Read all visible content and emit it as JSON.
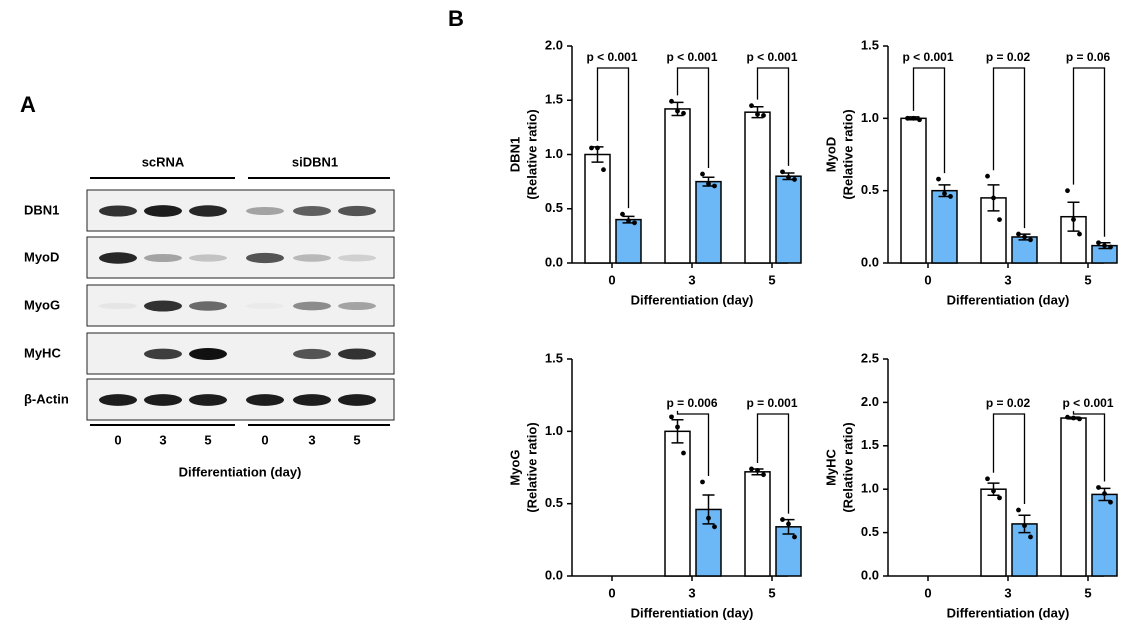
{
  "panel_a": {
    "label": "A",
    "groups": [
      "scRNA",
      "siDBN1"
    ],
    "rows": [
      "DBN1",
      "MyoD",
      "MyoG",
      "MyHC",
      "β-Actin"
    ],
    "lanes": [
      "0",
      "3",
      "5",
      "0",
      "3",
      "5"
    ],
    "xlabel": "Differentiation (day)"
  },
  "panel_b": {
    "label": "B"
  },
  "chart_data": [
    {
      "type": "bar",
      "ylabel": [
        "DBN1",
        "(Relative ratio)"
      ],
      "xlabel": "Differentiation (day)",
      "categories": [
        "0",
        "3",
        "5"
      ],
      "ylim": [
        0,
        2
      ],
      "yticks": [
        {
          "value": 0,
          "label": "0.0"
        },
        {
          "value": 0.5,
          "label": "0.5"
        },
        {
          "value": 1,
          "label": "1.0"
        },
        {
          "value": 1.5,
          "label": "1.5"
        },
        {
          "value": 2,
          "label": "2.0"
        }
      ],
      "series": [
        {
          "color": "#ffffff",
          "values": [
            1.0,
            1.42,
            1.39
          ],
          "errors": [
            0.07,
            0.06,
            0.05
          ],
          "points": [
            [
              1.06,
              1.06,
              0.86
            ],
            [
              1.49,
              1.4,
              1.38
            ],
            [
              1.45,
              1.37,
              1.36
            ]
          ]
        },
        {
          "color": "#6cb7f5",
          "values": [
            0.4,
            0.75,
            0.8
          ],
          "errors": [
            0.03,
            0.04,
            0.03
          ],
          "points": [
            [
              0.45,
              0.39,
              0.37
            ],
            [
              0.82,
              0.73,
              0.71
            ],
            [
              0.84,
              0.79,
              0.77
            ]
          ]
        }
      ],
      "annotations": [
        "p < 0.001",
        "p < 0.001",
        "p < 0.001"
      ]
    },
    {
      "type": "bar",
      "ylabel": [
        "MyoD",
        "(Relative ratio)"
      ],
      "xlabel": "Differentiation (day)",
      "categories": [
        "0",
        "3",
        "5"
      ],
      "ylim": [
        0,
        1.5
      ],
      "yticks": [
        {
          "value": 0,
          "label": "0.0"
        },
        {
          "value": 0.5,
          "label": "0.5"
        },
        {
          "value": 1,
          "label": "1.0"
        },
        {
          "value": 1.5,
          "label": "1.5"
        }
      ],
      "series": [
        {
          "color": "#ffffff",
          "values": [
            1.0,
            0.45,
            0.32
          ],
          "errors": [
            0.01,
            0.09,
            0.1
          ],
          "points": [
            [
              1.0,
              1.0,
              0.99
            ],
            [
              0.6,
              0.45,
              0.3
            ],
            [
              0.5,
              0.3,
              0.2
            ]
          ]
        },
        {
          "color": "#6cb7f5",
          "values": [
            0.5,
            0.18,
            0.12
          ],
          "errors": [
            0.04,
            0.02,
            0.02
          ],
          "points": [
            [
              0.58,
              0.48,
              0.46
            ],
            [
              0.2,
              0.18,
              0.16
            ],
            [
              0.14,
              0.12,
              0.11
            ]
          ]
        }
      ],
      "annotations": [
        "p < 0.001",
        "p = 0.02",
        "p = 0.06"
      ]
    },
    {
      "type": "bar",
      "ylabel": [
        "MyoG",
        "(Relative ratio)"
      ],
      "xlabel": "Differentiation (day)",
      "categories": [
        "0",
        "3",
        "5"
      ],
      "ylim": [
        0,
        1.5
      ],
      "yticks": [
        {
          "value": 0,
          "label": "0.0"
        },
        {
          "value": 0.5,
          "label": "0.5"
        },
        {
          "value": 1,
          "label": "1.0"
        },
        {
          "value": 1.5,
          "label": "1.5"
        }
      ],
      "series": [
        {
          "color": "#ffffff",
          "values": [
            null,
            1.0,
            0.72
          ],
          "errors": [
            null,
            0.08,
            0.02
          ],
          "points": [
            null,
            [
              1.1,
              1.03,
              0.85
            ],
            [
              0.74,
              0.73,
              0.7
            ]
          ]
        },
        {
          "color": "#6cb7f5",
          "values": [
            null,
            0.46,
            0.34
          ],
          "errors": [
            null,
            0.1,
            0.05
          ],
          "points": [
            null,
            [
              0.65,
              0.4,
              0.34
            ],
            [
              0.39,
              0.36,
              0.27
            ]
          ]
        }
      ],
      "annotations": [
        null,
        "p = 0.006",
        "p = 0.001"
      ]
    },
    {
      "type": "bar",
      "ylabel": [
        "MyHC",
        "(Relative ratio)"
      ],
      "xlabel": "Differentiation (day)",
      "categories": [
        "0",
        "3",
        "5"
      ],
      "ylim": [
        0,
        2.5
      ],
      "yticks": [
        {
          "value": 0,
          "label": "0.0"
        },
        {
          "value": 0.5,
          "label": "0.5"
        },
        {
          "value": 1,
          "label": "1.0"
        },
        {
          "value": 1.5,
          "label": "1.5"
        },
        {
          "value": 2,
          "label": "2.0"
        },
        {
          "value": 2.5,
          "label": "2.5"
        }
      ],
      "series": [
        {
          "color": "#ffffff",
          "values": [
            null,
            1.0,
            1.82
          ],
          "errors": [
            null,
            0.07,
            0.01
          ],
          "points": [
            null,
            [
              1.12,
              0.98,
              0.9
            ],
            [
              1.83,
              1.82,
              1.81
            ]
          ]
        },
        {
          "color": "#6cb7f5",
          "values": [
            null,
            0.6,
            0.94
          ],
          "errors": [
            null,
            0.1,
            0.07
          ],
          "points": [
            null,
            [
              0.76,
              0.58,
              0.45
            ],
            [
              1.02,
              0.95,
              0.85
            ]
          ]
        }
      ],
      "annotations": [
        null,
        "p = 0.02",
        "p < 0.001"
      ]
    }
  ]
}
